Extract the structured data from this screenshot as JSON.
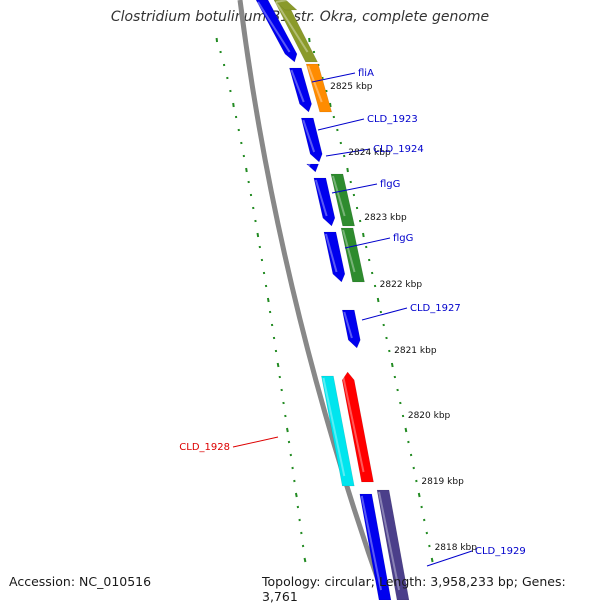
{
  "title": "Clostridium botulinum B1 str. Okra, complete genome",
  "footer": {
    "accession_label": "Accession:",
    "accession": "NC_010516",
    "topology_label": "Topology:",
    "topology": "circular",
    "length_label": "Length:",
    "length": "3,958,233 bp",
    "genes_label": "Genes:",
    "genes": "3,761"
  },
  "colors": {
    "backbone": "#888888",
    "ruler": "#228b22",
    "gene_blue": "#0000ee",
    "gene_green": "#2e8b2e",
    "gene_olive": "#8a9a2a",
    "gene_orange": "#ff8c00",
    "gene_red": "#ff0000",
    "gene_cyan": "#00e5ee",
    "gene_slate": "#4b3f8a",
    "label_blue": "#0000cc",
    "label_red": "#dd0000"
  },
  "ticks": [
    {
      "label": "2825 kbp"
    },
    {
      "label": "2824 kbp"
    },
    {
      "label": "2823 kbp"
    },
    {
      "label": "2822 kbp"
    },
    {
      "label": "2821 kbp"
    },
    {
      "label": "2820 kbp"
    },
    {
      "label": "2819 kbp"
    },
    {
      "label": "2818 kbp"
    }
  ],
  "gene_labels": [
    {
      "name": "fliA",
      "color": "label_blue"
    },
    {
      "name": "CLD_1923",
      "color": "label_blue"
    },
    {
      "name": "CLD_1924",
      "color": "label_blue"
    },
    {
      "name": "flgG",
      "color": "label_blue"
    },
    {
      "name": "flgG",
      "color": "label_blue"
    },
    {
      "name": "CLD_1927",
      "color": "label_blue"
    },
    {
      "name": "CLD_1928",
      "color": "label_red"
    },
    {
      "name": "CLD_1929",
      "color": "label_blue"
    }
  ]
}
